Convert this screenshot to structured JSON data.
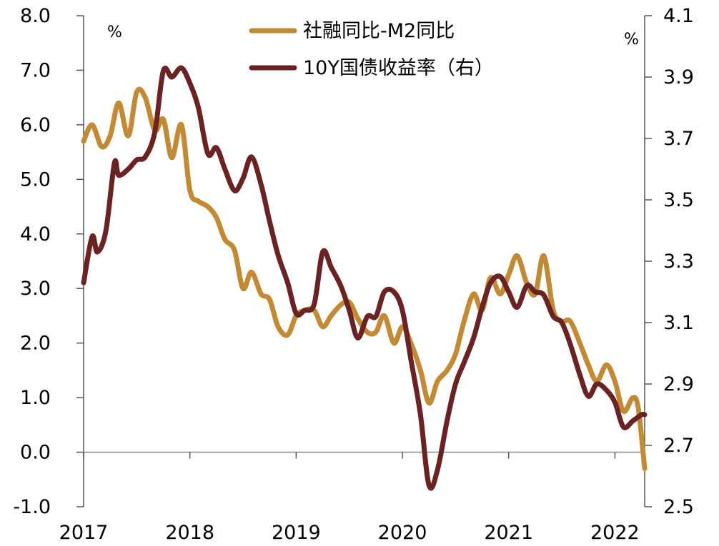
{
  "chart_data": {
    "type": "line",
    "title": "",
    "x_ticks": [
      "2017",
      "2018",
      "2019",
      "2020",
      "2021",
      "2022"
    ],
    "x_range": [
      2017.0,
      2022.28
    ],
    "y_left": {
      "unit": "%",
      "range": [
        -1.0,
        8.0
      ],
      "ticks": [
        "8.0",
        "7.0",
        "6.0",
        "5.0",
        "4.0",
        "3.0",
        "2.0",
        "1.0",
        "0.0",
        "-1.0"
      ]
    },
    "y_right": {
      "unit": "%",
      "range": [
        2.5,
        4.1
      ],
      "ticks": [
        "4.1",
        "3.9",
        "3.7",
        "3.5",
        "3.3",
        "3.1",
        "2.9",
        "2.7",
        "2.5"
      ]
    },
    "grid": false,
    "legend_position": "top-center",
    "series": [
      {
        "name": "社融同比-M2同比",
        "axis": "left",
        "color": "#C38A35",
        "points": [
          [
            2017.0,
            5.7
          ],
          [
            2017.08,
            6.0
          ],
          [
            2017.17,
            5.6
          ],
          [
            2017.25,
            5.8
          ],
          [
            2017.33,
            6.4
          ],
          [
            2017.42,
            5.8
          ],
          [
            2017.5,
            6.6
          ],
          [
            2017.58,
            6.5
          ],
          [
            2017.67,
            5.9
          ],
          [
            2017.75,
            6.1
          ],
          [
            2017.83,
            5.4
          ],
          [
            2017.92,
            6.0
          ],
          [
            2018.0,
            4.8
          ],
          [
            2018.08,
            4.6
          ],
          [
            2018.17,
            4.5
          ],
          [
            2018.25,
            4.3
          ],
          [
            2018.33,
            3.9
          ],
          [
            2018.42,
            3.7
          ],
          [
            2018.5,
            3.0
          ],
          [
            2018.58,
            3.3
          ],
          [
            2018.67,
            2.9
          ],
          [
            2018.75,
            2.8
          ],
          [
            2018.83,
            2.3
          ],
          [
            2018.92,
            2.15
          ],
          [
            2019.0,
            2.5
          ],
          [
            2019.08,
            2.6
          ],
          [
            2019.17,
            2.6
          ],
          [
            2019.25,
            2.3
          ],
          [
            2019.33,
            2.5
          ],
          [
            2019.42,
            2.7
          ],
          [
            2019.5,
            2.75
          ],
          [
            2019.58,
            2.45
          ],
          [
            2019.67,
            2.2
          ],
          [
            2019.75,
            2.2
          ],
          [
            2019.83,
            2.5
          ],
          [
            2019.92,
            2.0
          ],
          [
            2020.0,
            2.3
          ],
          [
            2020.08,
            2.0
          ],
          [
            2020.17,
            1.5
          ],
          [
            2020.25,
            0.9
          ],
          [
            2020.33,
            1.3
          ],
          [
            2020.42,
            1.5
          ],
          [
            2020.5,
            1.8
          ],
          [
            2020.58,
            2.4
          ],
          [
            2020.67,
            2.9
          ],
          [
            2020.75,
            2.6
          ],
          [
            2020.83,
            3.2
          ],
          [
            2020.92,
            2.9
          ],
          [
            2021.0,
            3.25
          ],
          [
            2021.08,
            3.6
          ],
          [
            2021.17,
            3.1
          ],
          [
            2021.25,
            2.9
          ],
          [
            2021.33,
            3.6
          ],
          [
            2021.42,
            2.6
          ],
          [
            2021.5,
            2.4
          ],
          [
            2021.58,
            2.4
          ],
          [
            2021.67,
            2.0
          ],
          [
            2021.75,
            1.6
          ],
          [
            2021.83,
            1.3
          ],
          [
            2021.92,
            1.6
          ],
          [
            2022.0,
            1.3
          ],
          [
            2022.08,
            0.75
          ],
          [
            2022.17,
            1.0
          ],
          [
            2022.22,
            0.8
          ],
          [
            2022.28,
            -0.3
          ]
        ]
      },
      {
        "name": "10Y国债收益率（右）",
        "axis": "right",
        "color": "#6B2222",
        "points": [
          [
            2017.0,
            3.23
          ],
          [
            2017.08,
            3.38
          ],
          [
            2017.13,
            3.33
          ],
          [
            2017.21,
            3.4
          ],
          [
            2017.29,
            3.62
          ],
          [
            2017.33,
            3.58
          ],
          [
            2017.42,
            3.6
          ],
          [
            2017.5,
            3.63
          ],
          [
            2017.58,
            3.64
          ],
          [
            2017.67,
            3.72
          ],
          [
            2017.75,
            3.92
          ],
          [
            2017.83,
            3.9
          ],
          [
            2017.92,
            3.93
          ],
          [
            2018.0,
            3.88
          ],
          [
            2018.08,
            3.8
          ],
          [
            2018.17,
            3.65
          ],
          [
            2018.25,
            3.67
          ],
          [
            2018.33,
            3.6
          ],
          [
            2018.42,
            3.53
          ],
          [
            2018.5,
            3.57
          ],
          [
            2018.58,
            3.64
          ],
          [
            2018.67,
            3.55
          ],
          [
            2018.75,
            3.43
          ],
          [
            2018.83,
            3.32
          ],
          [
            2018.92,
            3.23
          ],
          [
            2019.0,
            3.13
          ],
          [
            2019.08,
            3.14
          ],
          [
            2019.17,
            3.16
          ],
          [
            2019.25,
            3.33
          ],
          [
            2019.33,
            3.28
          ],
          [
            2019.42,
            3.22
          ],
          [
            2019.5,
            3.14
          ],
          [
            2019.58,
            3.05
          ],
          [
            2019.67,
            3.12
          ],
          [
            2019.75,
            3.12
          ],
          [
            2019.83,
            3.2
          ],
          [
            2019.92,
            3.2
          ],
          [
            2020.0,
            3.14
          ],
          [
            2020.08,
            2.98
          ],
          [
            2020.17,
            2.8
          ],
          [
            2020.25,
            2.57
          ],
          [
            2020.33,
            2.62
          ],
          [
            2020.42,
            2.78
          ],
          [
            2020.5,
            2.9
          ],
          [
            2020.58,
            2.97
          ],
          [
            2020.67,
            3.05
          ],
          [
            2020.75,
            3.15
          ],
          [
            2020.83,
            3.23
          ],
          [
            2020.92,
            3.25
          ],
          [
            2021.0,
            3.2
          ],
          [
            2021.08,
            3.15
          ],
          [
            2021.17,
            3.22
          ],
          [
            2021.25,
            3.2
          ],
          [
            2021.33,
            3.19
          ],
          [
            2021.42,
            3.12
          ],
          [
            2021.5,
            3.1
          ],
          [
            2021.58,
            3.03
          ],
          [
            2021.67,
            2.93
          ],
          [
            2021.75,
            2.86
          ],
          [
            2021.83,
            2.9
          ],
          [
            2021.92,
            2.88
          ],
          [
            2022.0,
            2.84
          ],
          [
            2022.08,
            2.76
          ],
          [
            2022.17,
            2.78
          ],
          [
            2022.25,
            2.8
          ],
          [
            2022.28,
            2.8
          ]
        ]
      }
    ]
  }
}
